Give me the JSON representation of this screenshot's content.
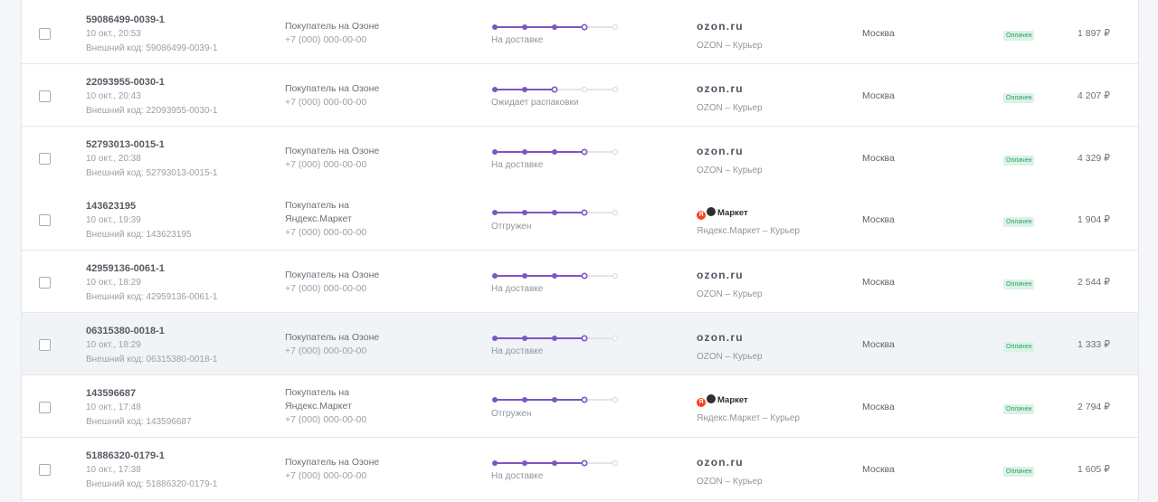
{
  "colors": {
    "progress_active": "#7b57c2",
    "progress_inactive": "#dadde2",
    "badge_bg": "#d9f3e6",
    "badge_text": "#2f9b64",
    "yandex_red": "#fc3f1d"
  },
  "orders": [
    {
      "id": "59086499-0039-1",
      "date": "10 окт., 20:53",
      "external": "Внешний код: 59086499-0039-1",
      "buyer": "Покупатель на Озоне",
      "phone": "+7 (000) 000-00-00",
      "progress_step": 4,
      "status": "На доставке",
      "marketplace": "ozon",
      "marketplace_logo": "ozon.ru",
      "delivery": "OZON – Курьер",
      "city": "Москва",
      "payment": "Оплачен",
      "price": "1 897 ₽"
    },
    {
      "id": "22093955-0030-1",
      "date": "10 окт., 20:43",
      "external": "Внешний код: 22093955-0030-1",
      "buyer": "Покупатель на Озоне",
      "phone": "+7 (000) 000-00-00",
      "progress_step": 3,
      "status": "Ожидает распаковки",
      "marketplace": "ozon",
      "marketplace_logo": "ozon.ru",
      "delivery": "OZON – Курьер",
      "city": "Москва",
      "payment": "Оплачен",
      "price": "4 207 ₽"
    },
    {
      "id": "52793013-0015-1",
      "date": "10 окт., 20:38",
      "external": "Внешний код: 52793013-0015-1",
      "buyer": "Покупатель на Озоне",
      "phone": "+7 (000) 000-00-00",
      "progress_step": 4,
      "status": "На доставке",
      "marketplace": "ozon",
      "marketplace_logo": "ozon.ru",
      "delivery": "OZON – Курьер",
      "city": "Москва",
      "payment": "Оплачен",
      "price": "4 329 ₽"
    },
    {
      "id": "143623195",
      "date": "10 окт., 19:39",
      "external": "Внешний код: 143623195",
      "buyer": "Покупатель на Яндекс.Маркет",
      "phone": "+7 (000) 000-00-00",
      "progress_step": 4,
      "status": "Отгружен",
      "marketplace": "yandex",
      "marketplace_logo": "Маркет",
      "marketplace_logo_letter": "Я",
      "delivery": "Яндекс.Маркет – Курьер",
      "city": "Москва",
      "payment": "Оплачен",
      "price": "1 904 ₽"
    },
    {
      "id": "42959136-0061-1",
      "date": "10 окт., 18:29",
      "external": "Внешний код: 42959136-0061-1",
      "buyer": "Покупатель на Озоне",
      "phone": "+7 (000) 000-00-00",
      "progress_step": 4,
      "status": "На доставке",
      "marketplace": "ozon",
      "marketplace_logo": "ozon.ru",
      "delivery": "OZON – Курьер",
      "city": "Москва",
      "payment": "Оплачен",
      "price": "2 544 ₽"
    },
    {
      "id": "06315380-0018-1",
      "date": "10 окт., 18:29",
      "external": "Внешний код: 06315380-0018-1",
      "buyer": "Покупатель на Озоне",
      "phone": "+7 (000) 000-00-00",
      "progress_step": 4,
      "status": "На доставке",
      "marketplace": "ozon",
      "marketplace_logo": "ozon.ru",
      "delivery": "OZON – Курьер",
      "city": "Москва",
      "payment": "Оплачен",
      "price": "1 333 ₽",
      "hovered": true
    },
    {
      "id": "143596687",
      "date": "10 окт., 17:48",
      "external": "Внешний код: 143596687",
      "buyer": "Покупатель на Яндекс.Маркет",
      "phone": "+7 (000) 000-00-00",
      "progress_step": 4,
      "status": "Отгружен",
      "marketplace": "yandex",
      "marketplace_logo": "Маркет",
      "marketplace_logo_letter": "Я",
      "delivery": "Яндекс.Маркет – Курьер",
      "city": "Москва",
      "payment": "Оплачен",
      "price": "2 794 ₽"
    },
    {
      "id": "51886320-0179-1",
      "date": "10 окт., 17:38",
      "external": "Внешний код: 51886320-0179-1",
      "buyer": "Покупатель на Озоне",
      "phone": "+7 (000) 000-00-00",
      "progress_step": 4,
      "status": "На доставке",
      "marketplace": "ozon",
      "marketplace_logo": "ozon.ru",
      "delivery": "OZON – Курьер",
      "city": "Москва",
      "payment": "Оплачен",
      "price": "1 605 ₽"
    }
  ]
}
